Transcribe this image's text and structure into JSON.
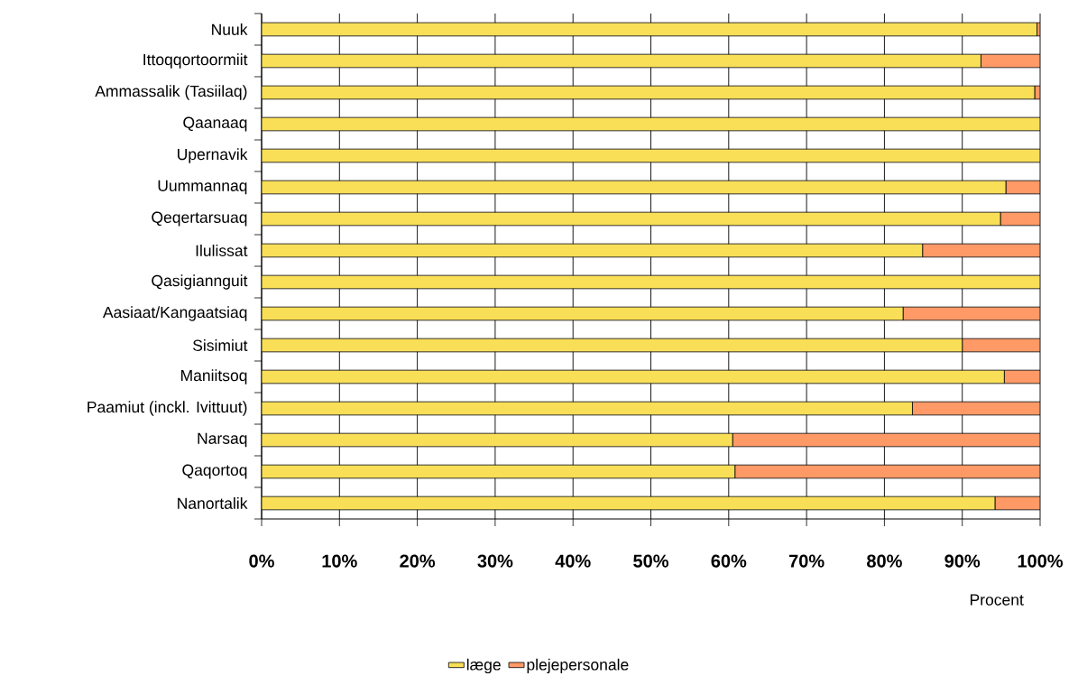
{
  "chart_data": {
    "type": "bar",
    "orientation": "horizontal",
    "stacked": true,
    "grid": "x",
    "legend": "bottom",
    "xlabel": "Procent",
    "categories": [
      "Nuuk",
      "Ittoqqortoormiit",
      "Ammassalik (Tasiilaq)",
      "Qaanaaq",
      "Upernavik",
      "Uummannaq",
      "Qeqertarsuaq",
      "Ilulissat",
      "Qasigiannguit",
      "Aasiaat/Kangaatsiaq",
      "Sisimiut",
      "Maniitsoq",
      "Paamiut (inckl. Ivittuut)",
      "Narsaq",
      "Qaqortoq",
      "Nanortalik"
    ],
    "series": [
      {
        "name": "læge",
        "color": "#f9df57",
        "values": [
          99.6,
          92.4,
          99.3,
          100,
          100,
          95.6,
          94.9,
          84.9,
          100,
          82.4,
          90,
          95.4,
          83.6,
          60.5,
          60.8,
          94.2
        ]
      },
      {
        "name": "plejepersonale",
        "color": "#ff9966",
        "values": [
          0.4,
          7.6,
          0.7,
          0,
          0,
          4.4,
          5.1,
          15.1,
          0,
          17.6,
          10,
          4.6,
          16.4,
          39.5,
          39.2,
          5.8
        ]
      }
    ],
    "xlim": [
      0,
      100
    ],
    "xticks": [
      {
        "value": 0,
        "label": "0%"
      },
      {
        "value": 10,
        "label": "10%"
      },
      {
        "value": 20,
        "label": "20%"
      },
      {
        "value": 30,
        "label": "30%"
      },
      {
        "value": 40,
        "label": "40%"
      },
      {
        "value": 50,
        "label": "50%"
      },
      {
        "value": 60,
        "label": "60%"
      },
      {
        "value": 70,
        "label": "70%"
      },
      {
        "value": 80,
        "label": "80%"
      },
      {
        "value": 90,
        "label": "90%"
      },
      {
        "value": 100,
        "label": "100%"
      }
    ]
  }
}
